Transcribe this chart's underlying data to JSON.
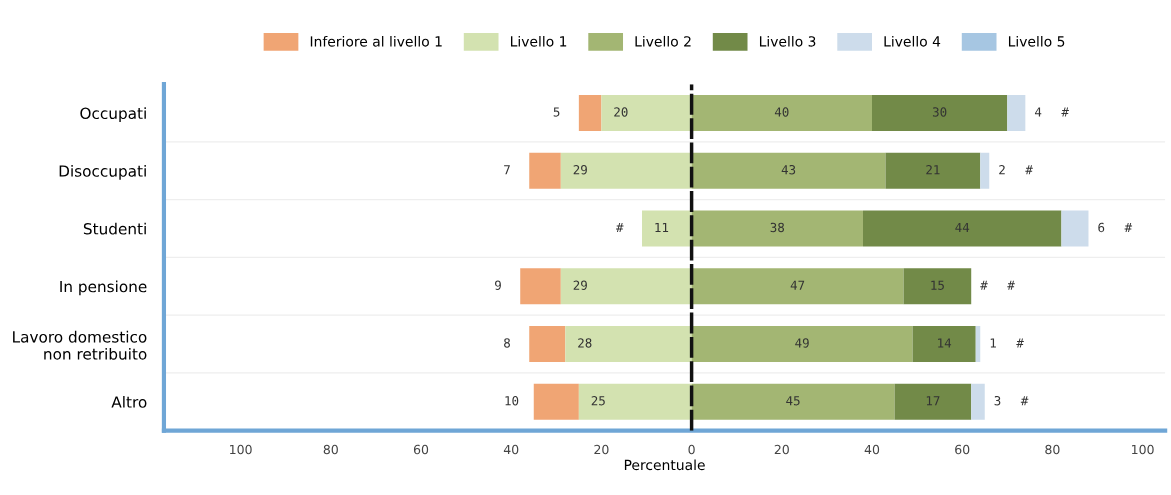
{
  "chart_data": {
    "type": "bar",
    "orientation": "horizontal",
    "stacked": true,
    "categories": [
      "Occupati",
      "Disoccupati",
      "Studenti",
      "In pensione",
      "Lavoro domestico\nnon retribuito",
      "Altro"
    ],
    "series": [
      {
        "name": "Inferiore al livello 1",
        "color": "#f0a574",
        "values": [
          -5,
          -7,
          null,
          -9,
          -8,
          -10
        ]
      },
      {
        "name": "Livello 1",
        "color": "#d3e2b0",
        "values": [
          -20,
          -29,
          -11,
          -29,
          -28,
          -25
        ]
      },
      {
        "name": "Livello 2",
        "color": "#a3b673",
        "values": [
          40,
          43,
          38,
          47,
          49,
          45
        ],
        "value_labels": [
          "40",
          "43",
          "38",
          "47",
          "49",
          "45"
        ]
      },
      {
        "name": "Livello 3",
        "color": "#728a48",
        "values": [
          30,
          21,
          44,
          15,
          14,
          17
        ],
        "value_labels": [
          "30",
          "21",
          "44",
          "15",
          "14",
          "17"
        ]
      },
      {
        "name": "Livello 4",
        "color": "#cddceb",
        "values": [
          4,
          2,
          6,
          null,
          1,
          3
        ],
        "value_labels": [
          "4",
          "2",
          "6",
          "#",
          "1",
          "3"
        ]
      },
      {
        "name": "Livello 5",
        "color": "#a6c6e2",
        "values": [
          null,
          null,
          null,
          null,
          null,
          null
        ],
        "value_labels": [
          "#",
          "#",
          "#",
          "#",
          "#",
          "#"
        ]
      }
    ],
    "annotations": [
      {
        "text": "5",
        "x": -25,
        "y": "Occupati"
      },
      {
        "text": "7",
        "x": -36,
        "y": "Disoccupati"
      },
      {
        "text": "#",
        "x": -11,
        "y": "Studenti"
      },
      {
        "text": "9",
        "x": -38,
        "y": "In pensione"
      },
      {
        "text": "8",
        "x": -36,
        "y": "Lavoro domestico\nnon retribuito"
      },
      {
        "text": "10",
        "x": -35,
        "y": "Altro"
      },
      {
        "text": "20",
        "x": -20,
        "y": "Occupati"
      },
      {
        "text": "29",
        "x": -29,
        "y": "Disoccupati"
      },
      {
        "text": "11",
        "x": -11,
        "y": "Studenti"
      },
      {
        "text": "29",
        "x": -29,
        "y": "In pensione"
      },
      {
        "text": "28",
        "x": -28,
        "y": "Lavoro domestico\nnon retribuito"
      },
      {
        "text": "25",
        "x": -25,
        "y": "Altro"
      }
    ],
    "xlim": [
      -117,
      105
    ],
    "xticks": [
      {
        "value": -100,
        "label": "100"
      },
      {
        "value": -80,
        "label": "80"
      },
      {
        "value": -60,
        "label": "60"
      },
      {
        "value": -40,
        "label": "40"
      },
      {
        "value": -20,
        "label": "20"
      },
      0,
      20,
      40,
      60,
      80,
      100
    ],
    "xlabel": "Percentuale",
    "ref_lines": [
      {
        "axis": "x",
        "value": 0,
        "color": "#111111",
        "line_style": "dashed"
      }
    ],
    "legend": "top"
  }
}
